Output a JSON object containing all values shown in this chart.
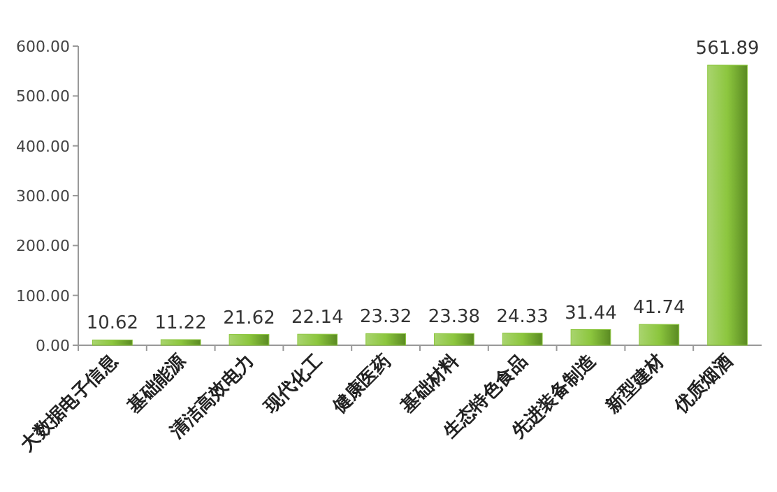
{
  "chart_data": {
    "type": "bar",
    "categories": [
      "大数据电子信息",
      "基础能源",
      "清洁高效电力",
      "现代化工",
      "健康医药",
      "基础材料",
      "生态特色食品",
      "先进装备制造",
      "新型建材",
      "优质烟酒"
    ],
    "values": [
      10.62,
      11.22,
      21.62,
      22.14,
      23.32,
      23.38,
      24.33,
      31.44,
      41.74,
      561.89
    ],
    "color": "#8cc63e",
    "ylim": [
      0,
      600
    ],
    "yticks": [
      {
        "value": 0,
        "label": "0.00"
      },
      {
        "value": 100,
        "label": "100.00"
      },
      {
        "value": 200,
        "label": "200.00"
      },
      {
        "value": 300,
        "label": "300.00"
      },
      {
        "value": 400,
        "label": "400.00"
      },
      {
        "value": 500,
        "label": "500.00"
      },
      {
        "value": 600,
        "label": "600.00"
      }
    ],
    "data_labels": true,
    "grid": false
  }
}
